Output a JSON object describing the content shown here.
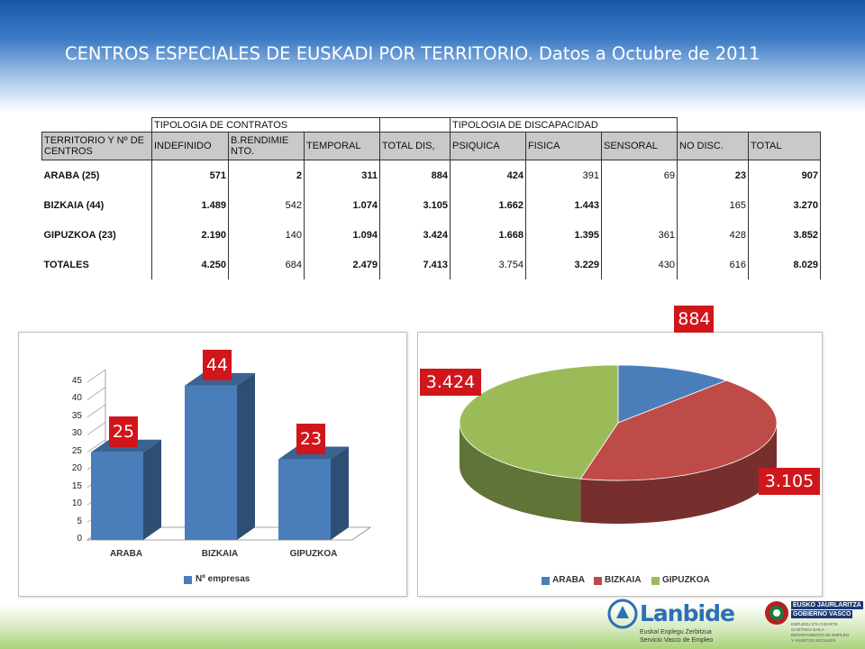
{
  "title": "CENTROS ESPECIALES DE EUSKADI POR TERRITORIO. Datos a Octubre de 2011",
  "table": {
    "group_contratos": "TIPOLOGIA DE CONTRATOS",
    "group_discapacidad": "TIPOLOGIA DE DISCAPACIDAD",
    "headers": [
      "TERRITORIO  Y Nº DE CENTROS",
      "INDEFINIDO",
      "B.RENDIMIE NTO.",
      "TEMPORAL",
      "TOTAL DIS,",
      "PSIQUICA",
      "FISICA",
      "SENSORAL",
      "NO DISC.",
      "TOTAL"
    ],
    "rows": [
      [
        "ARABA  (25)",
        "571",
        "2",
        "311",
        "884",
        "424",
        "391",
        "69",
        "23",
        "907"
      ],
      [
        "BIZKAIA  (44)",
        "1.489",
        "542",
        "1.074",
        "3.105",
        "1.662",
        "1.443",
        "",
        "165",
        "3.270"
      ],
      [
        "GIPUZKOA  (23)",
        "2.190",
        "140",
        "1.094",
        "3.424",
        "1.668",
        "1.395",
        "361",
        "428",
        "3.852"
      ],
      [
        "TOTALES",
        "4.250",
        "684",
        "2.479",
        "7.413",
        "3.754",
        "3.229",
        "430",
        "616",
        "8.029"
      ]
    ]
  },
  "chart_data": [
    {
      "type": "bar",
      "categories": [
        "ARABA",
        "BIZKAIA",
        "GIPUZKOA"
      ],
      "series": [
        {
          "name": "Nº empresas",
          "values": [
            25,
            44,
            23
          ]
        }
      ],
      "data_labels": [
        "25",
        "44",
        "23"
      ],
      "ylim": [
        0,
        45
      ],
      "yticks": [
        0,
        5,
        10,
        15,
        20,
        25,
        30,
        35,
        40,
        45
      ],
      "legend_position": "bottom",
      "colors": {
        "bar": "#4a7ebb",
        "label_box": "#d0161b"
      }
    },
    {
      "type": "pie",
      "categories": [
        "ARABA",
        "BIZKAIA",
        "GIPUZKOA"
      ],
      "values": [
        884,
        3105,
        3424
      ],
      "data_labels": [
        "884",
        "3.105",
        "3.424"
      ],
      "legend_position": "bottom",
      "colors": [
        "#4a7ebb",
        "#be4b48",
        "#9bbb59"
      ]
    }
  ],
  "footer": {
    "lanbide_brand": "Lanbide",
    "lanbide_tag1": "Euskal Enplegu Zerbitzua",
    "lanbide_tag2": "Servicio Vasco de Empleo",
    "gov_line1": "EUSKO JAURLARITZA",
    "gov_line2": "GOBIERNO VASCO",
    "gov_sub": "ENPLEGU ETA GIZARTE GAIETAKO SAILA · DEPARTAMENTO DE EMPLEO Y ASUNTOS SOCIALES"
  }
}
